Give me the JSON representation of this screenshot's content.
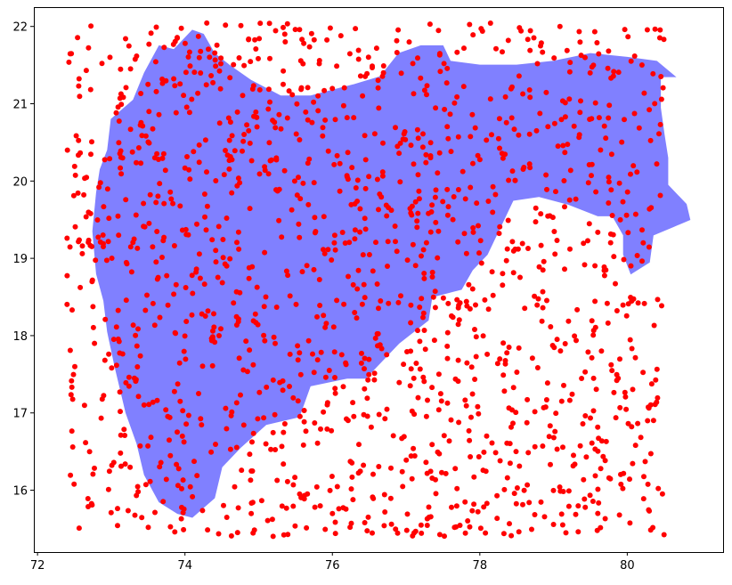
{
  "chart_data": {
    "type": "scatter",
    "title": "",
    "xlabel": "",
    "ylabel": "",
    "xlim": [
      71.95,
      81.3
    ],
    "ylim": [
      15.2,
      22.25
    ],
    "xticks": [
      72,
      74,
      76,
      78,
      80
    ],
    "yticks": [
      16,
      17,
      18,
      19,
      20,
      21,
      22
    ],
    "x_tick_labels": [
      "72",
      "74",
      "76",
      "78",
      "80"
    ],
    "y_tick_labels": [
      "16",
      "17",
      "18",
      "19",
      "20",
      "21",
      "22"
    ],
    "grid": false,
    "legend": "none",
    "colors": {
      "region_fill": "#8080ff",
      "points": "#ff0000",
      "axes": "#000000"
    },
    "region": {
      "name": "",
      "outline": [
        [
          74.1,
          15.65
        ],
        [
          74.4,
          15.9
        ],
        [
          74.5,
          16.3
        ],
        [
          74.75,
          16.55
        ],
        [
          75.1,
          16.85
        ],
        [
          75.55,
          16.95
        ],
        [
          75.7,
          17.35
        ],
        [
          76.2,
          17.45
        ],
        [
          76.45,
          17.45
        ],
        [
          76.9,
          17.9
        ],
        [
          77.3,
          18.2
        ],
        [
          77.35,
          18.5
        ],
        [
          77.75,
          18.6
        ],
        [
          77.9,
          18.85
        ],
        [
          78.1,
          19.05
        ],
        [
          78.2,
          19.25
        ],
        [
          78.3,
          19.45
        ],
        [
          78.45,
          19.75
        ],
        [
          78.8,
          19.8
        ],
        [
          79.2,
          19.7
        ],
        [
          79.6,
          19.55
        ],
        [
          79.8,
          19.55
        ],
        [
          79.95,
          19.3
        ],
        [
          79.95,
          19.05
        ],
        [
          80.05,
          18.8
        ],
        [
          80.3,
          18.95
        ],
        [
          80.35,
          19.3
        ],
        [
          80.6,
          19.4
        ],
        [
          80.85,
          19.5
        ],
        [
          80.8,
          19.7
        ],
        [
          80.55,
          19.95
        ],
        [
          80.55,
          20.3
        ],
        [
          80.5,
          20.6
        ],
        [
          80.45,
          20.95
        ],
        [
          80.45,
          21.35
        ],
        [
          80.65,
          21.35
        ],
        [
          80.4,
          21.55
        ],
        [
          80.0,
          21.6
        ],
        [
          79.5,
          21.65
        ],
        [
          79.0,
          21.55
        ],
        [
          78.5,
          21.5
        ],
        [
          78.0,
          21.5
        ],
        [
          77.6,
          21.55
        ],
        [
          77.5,
          21.75
        ],
        [
          77.2,
          21.75
        ],
        [
          76.9,
          21.65
        ],
        [
          76.65,
          21.35
        ],
        [
          76.3,
          21.25
        ],
        [
          76.1,
          21.2
        ],
        [
          75.7,
          21.1
        ],
        [
          75.3,
          21.1
        ],
        [
          74.9,
          21.3
        ],
        [
          74.6,
          21.5
        ],
        [
          74.4,
          21.65
        ],
        [
          74.25,
          21.9
        ],
        [
          74.1,
          21.95
        ],
        [
          73.85,
          21.7
        ],
        [
          73.65,
          21.75
        ],
        [
          73.45,
          21.4
        ],
        [
          73.3,
          21.05
        ],
        [
          73.0,
          20.8
        ],
        [
          72.95,
          20.4
        ],
        [
          72.85,
          20.15
        ],
        [
          72.8,
          19.85
        ],
        [
          72.75,
          19.35
        ],
        [
          72.8,
          18.8
        ],
        [
          72.9,
          18.45
        ],
        [
          72.95,
          18.05
        ],
        [
          73.05,
          17.6
        ],
        [
          73.2,
          17.0
        ],
        [
          73.35,
          16.6
        ],
        [
          73.45,
          16.2
        ],
        [
          73.65,
          15.85
        ],
        [
          73.9,
          15.7
        ],
        [
          74.1,
          15.65
        ]
      ]
    },
    "points": {
      "count": 1500,
      "x_range": [
        72.4,
        80.5
      ],
      "y_range": [
        15.4,
        22.05
      ],
      "color": "#ff0000",
      "distribution": "uniform random"
    }
  }
}
